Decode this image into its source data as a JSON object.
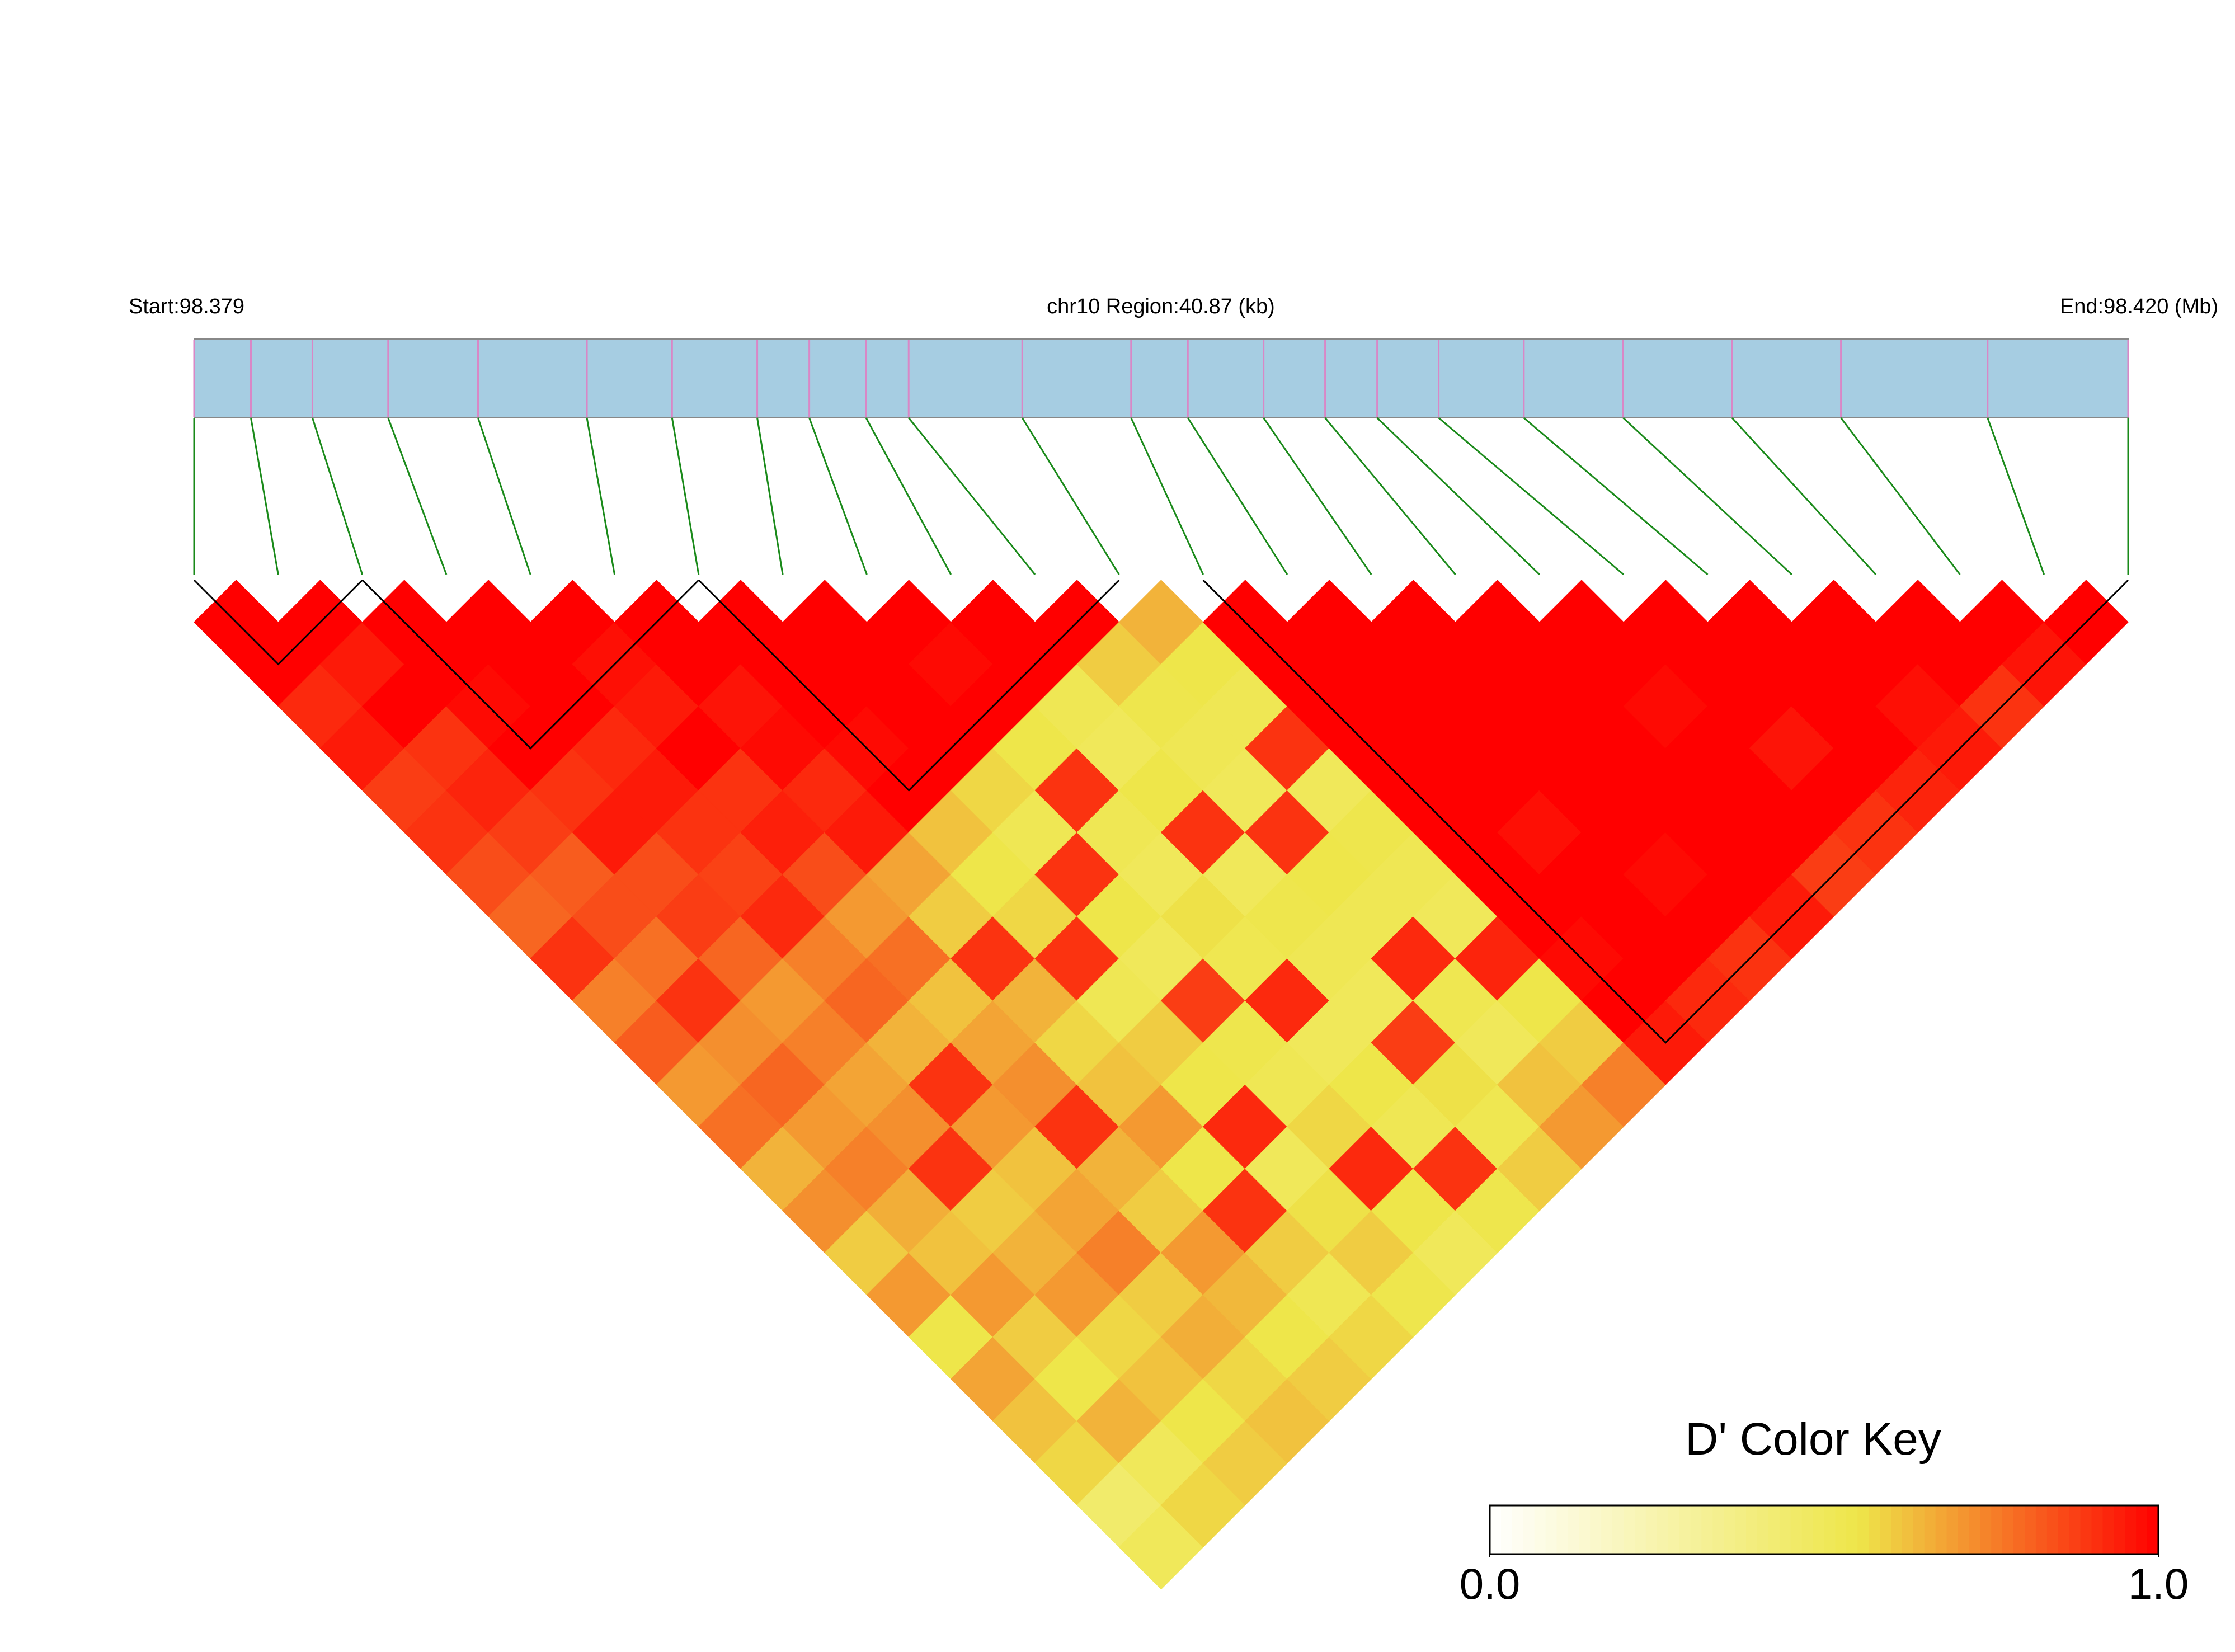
{
  "chart_data": {
    "type": "ld-heatmap",
    "start_label": "Start:98.379",
    "region_label": "chr10 Region:40.87 (kb)",
    "end_label": "End:98.420 (Mb)",
    "colorbar_title": "D' Color Key",
    "xlim": [
      0,
      40.87
    ],
    "snp_positions": [
      0,
      1.2,
      2.5,
      4.1,
      6.0,
      8.3,
      10.1,
      11.9,
      13.0,
      14.2,
      15.1,
      17.5,
      19.8,
      21.0,
      22.6,
      23.9,
      25.0,
      26.3,
      28.1,
      30.2,
      32.5,
      34.8,
      37.9,
      40.87
    ],
    "values": [
      [
        1,
        1,
        0.92,
        0.95,
        0.88,
        0.9,
        0.85,
        0.8,
        0.9,
        0.75,
        0.82,
        0.7,
        0.78,
        0.65,
        0.72,
        0.6,
        0.7,
        0.55,
        0.68,
        0.62,
        0.58,
        0.45,
        0.5
      ],
      [
        1,
        0.95,
        1,
        0.9,
        0.93,
        0.88,
        0.82,
        0.85,
        0.78,
        0.9,
        0.72,
        0.8,
        0.7,
        0.75,
        0.66,
        0.62,
        0.7,
        0.6,
        0.55,
        0.65,
        0.5,
        0.58
      ],
      [
        1,
        1,
        0.98,
        1,
        0.9,
        0.95,
        0.85,
        0.88,
        0.8,
        0.7,
        0.75,
        0.68,
        0.72,
        0.9,
        0.6,
        0.65,
        0.7,
        0.58,
        0.62,
        0.55,
        0.6
      ],
      [
        1,
        1,
        1,
        0.92,
        0.95,
        0.9,
        0.87,
        0.92,
        0.75,
        0.8,
        0.65,
        0.9,
        0.7,
        0.62,
        0.68,
        0.75,
        0.6,
        0.66,
        0.58,
        0.62
      ],
      [
        1,
        0.97,
        0.95,
        1,
        0.9,
        0.94,
        0.85,
        0.7,
        0.78,
        0.62,
        0.68,
        0.72,
        0.9,
        0.65,
        0.6,
        0.7,
        0.64,
        0.55,
        0.6
      ],
      [
        1,
        1,
        0.96,
        0.98,
        0.92,
        0.95,
        0.68,
        0.6,
        0.9,
        0.65,
        0.58,
        0.62,
        0.7,
        0.55,
        0.9,
        0.6,
        0.52,
        0.58
      ],
      [
        1,
        1,
        1,
        0.98,
        1,
        0.62,
        0.55,
        0.58,
        0.9,
        0.52,
        0.6,
        0.55,
        0.92,
        0.5,
        0.56,
        0.6,
        0.54
      ],
      [
        1,
        1,
        1,
        1,
        0.58,
        0.52,
        0.9,
        0.55,
        0.5,
        0.88,
        0.54,
        0.52,
        0.58,
        0.92,
        0.55,
        0.5
      ],
      [
        1,
        0.98,
        1,
        0.55,
        0.9,
        0.52,
        0.5,
        0.56,
        0.53,
        0.92,
        0.5,
        0.55,
        0.52,
        0.9,
        0.54
      ],
      [
        1,
        1,
        0.52,
        0.5,
        0.55,
        0.9,
        0.5,
        0.54,
        0.52,
        0.5,
        0.88,
        0.56,
        0.53,
        0.6
      ],
      [
        1,
        0.6,
        0.54,
        0.52,
        0.5,
        0.9,
        0.55,
        0.52,
        0.92,
        0.53,
        0.5,
        0.62,
        0.7
      ],
      [
        0.65,
        0.55,
        0.52,
        0.9,
        0.5,
        0.54,
        0.52,
        0.5,
        0.93,
        0.55,
        0.6,
        0.75
      ],
      [
        1,
        1,
        1,
        1,
        1,
        1,
        1,
        1,
        0.98,
        1,
        0.95
      ],
      [
        1,
        1,
        1,
        1,
        1,
        0.97,
        1,
        1,
        1,
        0.92
      ],
      [
        1,
        1,
        1,
        1,
        1,
        1,
        0.98,
        1,
        0.9
      ],
      [
        1,
        1,
        1,
        1,
        1,
        1,
        1,
        0.95
      ],
      [
        1,
        1,
        0.98,
        1,
        1,
        1,
        0.88
      ],
      [
        1,
        1,
        1,
        0.96,
        1,
        0.9
      ],
      [
        1,
        1,
        1,
        1,
        0.93
      ],
      [
        1,
        1,
        0.97,
        0.95
      ],
      [
        1,
        1,
        0.9
      ],
      [
        1,
        0.96
      ],
      [
        1
      ]
    ],
    "blocks": [
      [
        0,
        2
      ],
      [
        2,
        6
      ],
      [
        6,
        11
      ],
      [
        12,
        23
      ]
    ],
    "colors": [
      "#ffffff",
      "#eee64a",
      "#ff0000"
    ],
    "color_stops": [
      0,
      0.55,
      1
    ],
    "colorbar_lim": [
      0,
      1
    ],
    "colorbar_ticks": [
      {
        "value": 0,
        "label": "0.0"
      },
      {
        "value": 1,
        "label": "1.0"
      }
    ]
  }
}
